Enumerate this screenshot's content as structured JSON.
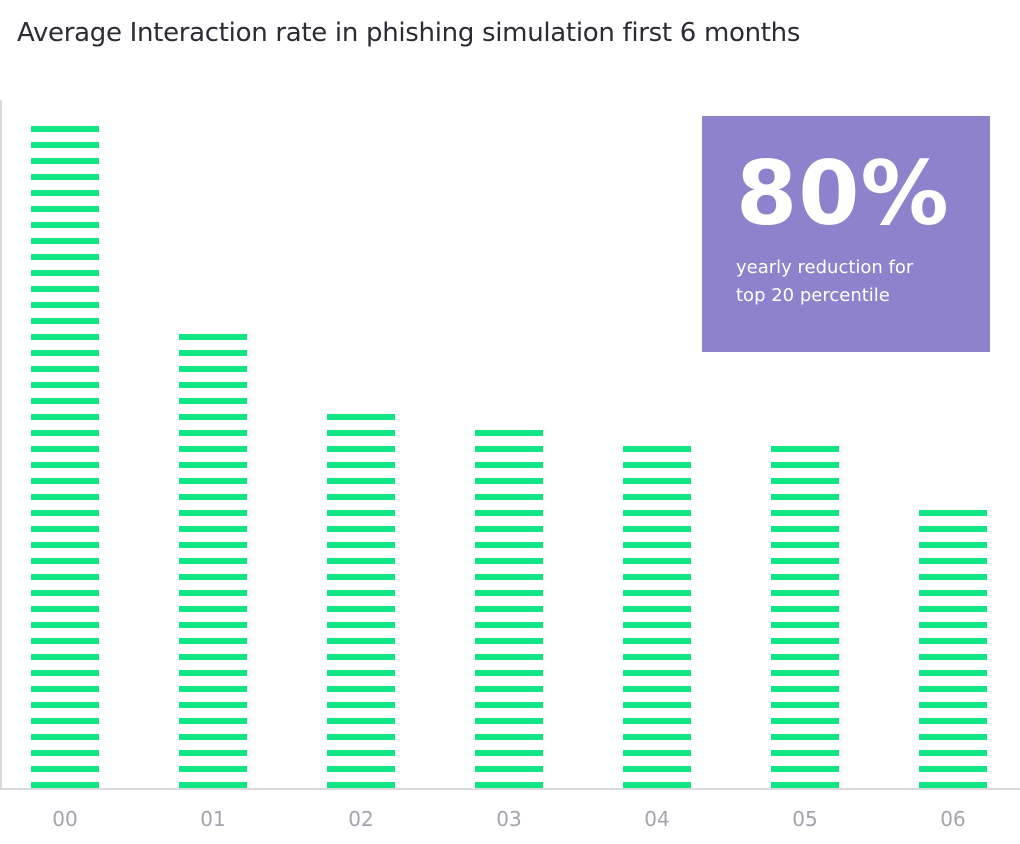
{
  "chart_data": {
    "type": "bar",
    "title": "Average Interaction rate in phishing simulation first 6 months",
    "categories": [
      "00",
      "01",
      "02",
      "03",
      "04",
      "05",
      "06"
    ],
    "values": [
      42,
      29,
      24,
      23,
      22,
      22,
      18
    ],
    "grid": false,
    "colors": {
      "bar": "#12e584",
      "axis": "#d9d9de",
      "tick_label": "#a3a3ad"
    }
  },
  "callout": {
    "value": "80%",
    "caption": "yearly reduction for top 20 percentile",
    "color": "#8e82cc"
  }
}
